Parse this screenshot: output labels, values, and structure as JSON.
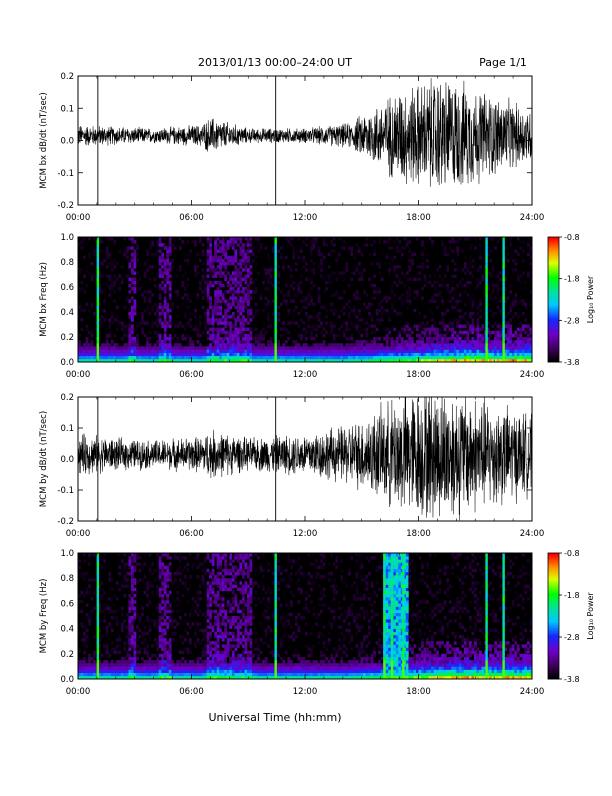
{
  "header": {
    "title": "2013/01/13  00:00–24:00 UT",
    "page": "Page 1/1"
  },
  "footer": {
    "xlabel": "Universal Time (hh:mm)"
  },
  "colors": {
    "trace": "#000000",
    "spectrogram_background": "#000000"
  },
  "chart_data": [
    {
      "type": "line",
      "ylabel": "MCM bx dB/dt (nT/sec)",
      "xlim": [
        0,
        24
      ],
      "ylim": [
        -0.2,
        0.2
      ],
      "x_ticks": [
        "00:00",
        "06:00",
        "12:00",
        "18:00",
        "24:00"
      ],
      "y_ticks": [
        "-0.2",
        "-0.1",
        "0.0",
        "0.1",
        "0.2"
      ],
      "spikes_hours": [
        1.05,
        10.45
      ],
      "amplitude_envelope": {
        "hours": [
          0,
          2,
          4,
          6.5,
          7,
          9,
          12,
          14.5,
          15,
          16,
          17,
          18,
          19,
          20,
          22,
          24
        ],
        "amplitude_nT_per_s": [
          0.03,
          0.025,
          0.02,
          0.03,
          0.05,
          0.02,
          0.02,
          0.035,
          0.06,
          0.09,
          0.13,
          0.14,
          0.16,
          0.15,
          0.11,
          0.07
        ]
      }
    },
    {
      "type": "heatmap",
      "ylabel": "MCM bx Freq (Hz)",
      "xlim": [
        0,
        24
      ],
      "ylim": [
        0,
        1.0
      ],
      "x_ticks": [
        "00:00",
        "06:00",
        "12:00",
        "18:00",
        "24:00"
      ],
      "y_ticks": [
        "0.0",
        "0.2",
        "0.4",
        "0.6",
        "0.8",
        "1.0"
      ],
      "colorbar": {
        "label": "Log₁₀ Power",
        "range": [
          -3.8,
          -0.8
        ],
        "ticks": [
          "-0.8",
          "-1.8",
          "-2.8",
          "-3.8"
        ]
      },
      "bright_lines_hours": [
        1.05,
        10.45,
        21.6,
        22.5
      ]
    },
    {
      "type": "line",
      "ylabel": "MCM by dB/dt (nT/sec)",
      "xlim": [
        0,
        24
      ],
      "ylim": [
        -0.2,
        0.2
      ],
      "x_ticks": [
        "00:00",
        "06:00",
        "12:00",
        "18:00",
        "24:00"
      ],
      "y_ticks": [
        "-0.2",
        "-0.1",
        "0.0",
        "0.1",
        "0.2"
      ],
      "spikes_hours": [
        1.05,
        10.45
      ],
      "amplitude_envelope": {
        "hours": [
          0,
          2,
          4,
          6.5,
          7,
          9,
          12,
          14,
          15,
          16,
          17,
          18,
          19,
          20,
          22,
          24
        ],
        "amplitude_nT_per_s": [
          0.06,
          0.045,
          0.04,
          0.05,
          0.07,
          0.045,
          0.06,
          0.08,
          0.1,
          0.13,
          0.17,
          0.18,
          0.19,
          0.18,
          0.15,
          0.11
        ]
      }
    },
    {
      "type": "heatmap",
      "ylabel": "MCM by Freq (Hz)",
      "xlim": [
        0,
        24
      ],
      "ylim": [
        0,
        1.0
      ],
      "x_ticks": [
        "00:00",
        "06:00",
        "12:00",
        "18:00",
        "24:00"
      ],
      "y_ticks": [
        "0.0",
        "0.2",
        "0.4",
        "0.6",
        "0.8",
        "1.0"
      ],
      "colorbar": {
        "label": "Log₁₀ Power",
        "range": [
          -3.8,
          -0.8
        ],
        "ticks": [
          "-0.8",
          "-1.8",
          "-2.8",
          "-3.8"
        ]
      },
      "bright_lines_hours": [
        1.05,
        10.45,
        16.2,
        16.6,
        17.2,
        21.6,
        22.5
      ]
    }
  ]
}
